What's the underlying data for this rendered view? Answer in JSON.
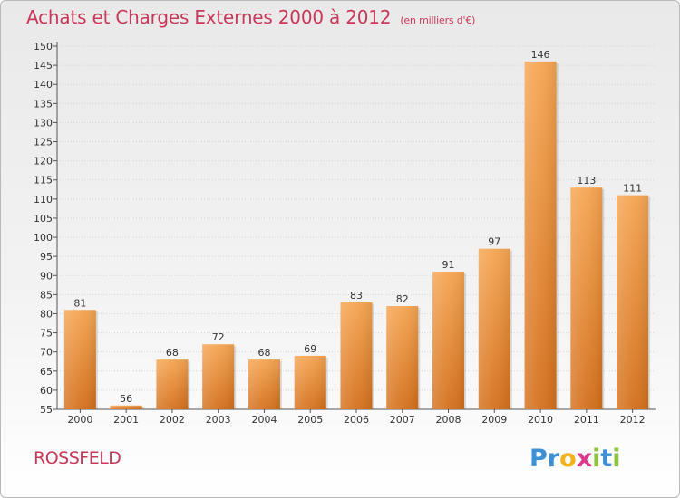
{
  "chart_data": {
    "type": "bar",
    "title": "Achats et Charges Externes 2000 à 2012",
    "subtitle": "(en milliers d'€)",
    "categories": [
      "2000",
      "2001",
      "2002",
      "2003",
      "2004",
      "2005",
      "2006",
      "2007",
      "2008",
      "2009",
      "2010",
      "2011",
      "2012"
    ],
    "values": [
      81,
      56,
      68,
      72,
      68,
      69,
      83,
      82,
      91,
      97,
      146,
      113,
      111
    ],
    "ylim": [
      55,
      150
    ],
    "yticks": [
      55,
      60,
      65,
      70,
      75,
      80,
      85,
      90,
      95,
      100,
      105,
      110,
      115,
      120,
      125,
      130,
      135,
      140,
      145,
      150
    ],
    "grid": true,
    "bar_color": "#f28b2e"
  },
  "footer": {
    "commune": "ROSSFELD",
    "logo": {
      "letters": [
        "P",
        "r",
        "o",
        "x",
        "i",
        "t",
        "i"
      ],
      "colors": [
        "#3d8fd6",
        "#3d8fd6",
        "#f2b21a",
        "#d93a8c",
        "#8dc43c",
        "#3d8fd6",
        "#8dc43c"
      ]
    }
  }
}
